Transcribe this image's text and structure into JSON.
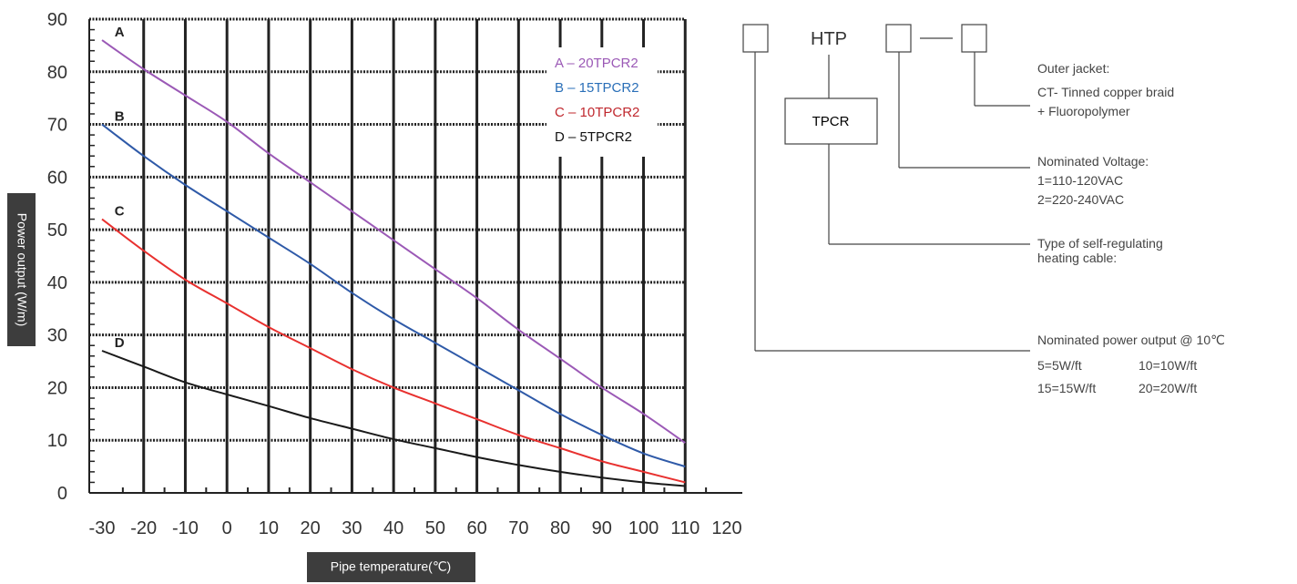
{
  "chart_data": {
    "type": "line",
    "xlabel": "Pipe temperature(℃)",
    "ylabel": "Power output (W/m)",
    "xlim": [
      -30,
      120
    ],
    "ylim": [
      0,
      90
    ],
    "x_ticks": [
      "-30",
      "-20",
      "-10",
      "0",
      "10",
      "20",
      "30",
      "40",
      "50",
      "60",
      "70",
      "80",
      "90",
      "100",
      "110",
      "120"
    ],
    "y_ticks": [
      "0",
      "10",
      "20",
      "30",
      "40",
      "50",
      "60",
      "70",
      "80",
      "90"
    ],
    "grid": true,
    "legend_position": "top-right",
    "series": [
      {
        "name": "A – 20TPCR2",
        "curve_label": "A",
        "color": "#9b59b6",
        "x": [
          -30,
          -20,
          -10,
          0,
          10,
          20,
          30,
          40,
          50,
          60,
          70,
          80,
          90,
          100,
          110
        ],
        "y": [
          86,
          80.5,
          75.5,
          70.5,
          64.5,
          59,
          53.5,
          48,
          42.5,
          37,
          31,
          25.5,
          20,
          15,
          9.5
        ]
      },
      {
        "name": "B – 15TPCR2",
        "curve_label": "B",
        "color": "#2f5aa8",
        "x": [
          -30,
          -20,
          -10,
          0,
          10,
          20,
          30,
          40,
          50,
          60,
          70,
          80,
          90,
          100,
          110
        ],
        "y": [
          70,
          64,
          58.5,
          53.5,
          48.5,
          43.5,
          38,
          33,
          28.5,
          24,
          19.5,
          15,
          11,
          7.5,
          5
        ]
      },
      {
        "name": "C – 10TPCR2",
        "curve_label": "C",
        "color": "#e8312f",
        "x": [
          -30,
          -20,
          -10,
          0,
          10,
          20,
          30,
          40,
          50,
          60,
          70,
          80,
          90,
          100,
          110
        ],
        "y": [
          52,
          46,
          40.5,
          36,
          31.5,
          27.5,
          23.5,
          20,
          17,
          14,
          11,
          8.5,
          6,
          4,
          2
        ]
      },
      {
        "name": "D – 5TPCR2",
        "curve_label": "D",
        "color": "#1a1a1a",
        "x": [
          -30,
          -20,
          -10,
          0,
          10,
          20,
          30,
          40,
          50,
          60,
          70,
          80,
          90,
          100,
          110
        ],
        "y": [
          27,
          24,
          21,
          18.7,
          16.5,
          14.2,
          12.2,
          10.2,
          8.5,
          6.8,
          5.3,
          4,
          2.9,
          2,
          1.3
        ]
      }
    ]
  },
  "legend": {
    "entries": [
      {
        "text": "A – 20TPCR2",
        "color": "#9b59b6"
      },
      {
        "text": "B – 15TPCR2",
        "color": "#2a6fb8"
      },
      {
        "text": "C – 10TPCR2",
        "color": "#c0282e"
      },
      {
        "text": "D – 5TPCR2",
        "color": "#111111"
      }
    ]
  },
  "axis_titles": {
    "y": "Power output (W/m)",
    "x": "Pipe temperature(℃)"
  },
  "product_code": {
    "series": "HTP",
    "separator": "—",
    "type_value": "TPCR",
    "outer_jacket": {
      "title": "Outer jacket:",
      "lines": [
        "CT- Tinned copper braid",
        "+ Fluoropolymer"
      ]
    },
    "voltage": {
      "title": "Nominated Voltage:",
      "lines": [
        "1=110-120VAC",
        "2=220-240VAC"
      ]
    },
    "cable_type": {
      "title_lines": [
        "Type of self-regulating",
        "heating cable:"
      ]
    },
    "power_output": {
      "title": "Nominated power output @ 10℃",
      "rows": [
        [
          "5=5W/ft",
          "10=10W/ft"
        ],
        [
          "15=15W/ft",
          "20=20W/ft"
        ]
      ]
    }
  }
}
